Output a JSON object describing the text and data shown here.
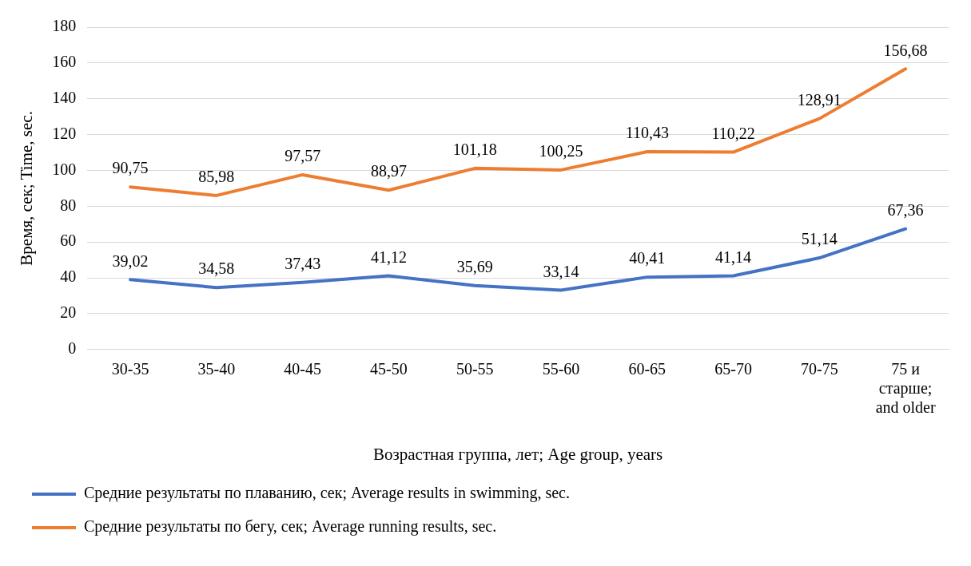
{
  "chart_data": {
    "type": "line",
    "xlabel": "Возрастная группа, лет; Age group, years",
    "ylabel": "Время, сек; Time, sec.",
    "categories": [
      "30-35",
      "35-40",
      "40-45",
      "45-50",
      "50-55",
      "55-60",
      "60-65",
      "65-70",
      "70-75",
      "75 и старше; and older"
    ],
    "ylim": [
      0,
      180
    ],
    "yticks": [
      0,
      20,
      40,
      60,
      80,
      100,
      120,
      140,
      160,
      180
    ],
    "grid": "y",
    "legend": "bottom",
    "marker": "none",
    "line_style": "solid",
    "series": [
      {
        "name": "Средние результаты по плаванию, сек; Average results in swimming, sec.",
        "color": "#4472c4",
        "values": [
          39.02,
          34.58,
          37.43,
          41.12,
          35.69,
          33.14,
          40.41,
          41.14,
          51.14,
          67.36
        ],
        "value_labels": [
          "39,02",
          "34,58",
          "37,43",
          "41,12",
          "35,69",
          "33,14",
          "40,41",
          "41,14",
          "51,14",
          "67,36"
        ]
      },
      {
        "name": "Средние результаты по бегу, сек; Average running results, sec.",
        "color": "#ed7d31",
        "values": [
          90.75,
          85.98,
          97.57,
          88.97,
          101.18,
          100.25,
          110.43,
          110.22,
          128.91,
          156.68
        ],
        "value_labels": [
          "90,75",
          "85,98",
          "97,57",
          "88,97",
          "101,18",
          "100,25",
          "110,43",
          "110,22",
          "128,91",
          "156,68"
        ]
      }
    ]
  }
}
